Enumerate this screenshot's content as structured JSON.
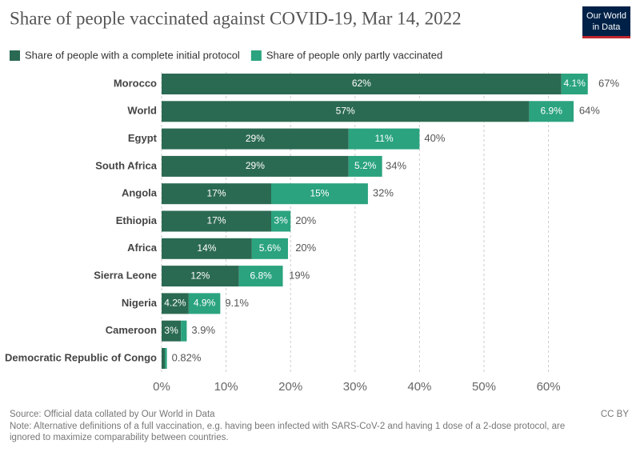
{
  "chart_data": {
    "type": "stacked-barh",
    "title": "Share of people vaccinated against COVID-19, Mar 14, 2022",
    "logo": [
      "Our World",
      "in Data"
    ],
    "categories": [
      "Morocco",
      "World",
      "Egypt",
      "South Africa",
      "Angola",
      "Ethiopia",
      "Africa",
      "Sierra Leone",
      "Nigeria",
      "Cameroon",
      "Democratic Republic of Congo"
    ],
    "series": [
      {
        "name": "Share of people with a complete initial protocol",
        "color": "#2b6a52",
        "values": [
          62,
          57,
          29,
          29,
          17,
          17,
          14,
          12,
          4.2,
          3,
          0.5
        ],
        "value_labels": [
          "62%",
          "57%",
          "29%",
          "29%",
          "17%",
          "17%",
          "14%",
          "12%",
          "4.2%",
          "3%",
          null
        ]
      },
      {
        "name": "Share of people only partly vaccinated",
        "color": "#2aa37e",
        "values": [
          4.1,
          6.9,
          11,
          5.2,
          15,
          3,
          5.6,
          6.8,
          4.9,
          0.9,
          0.32
        ],
        "value_labels": [
          "4.1%",
          "6.9%",
          "11%",
          "5.2%",
          "15%",
          "3%",
          "5.6%",
          "6.8%",
          "4.9%",
          null,
          null
        ]
      }
    ],
    "totals": [
      67,
      64,
      40,
      34,
      32,
      20,
      20,
      19,
      9.1,
      3.9,
      0.82
    ],
    "total_labels": [
      "67%",
      "64%",
      "40%",
      "34%",
      "32%",
      "20%",
      "20%",
      "19%",
      "9.1%",
      "3.9%",
      "0.82%"
    ],
    "xlim": [
      0,
      67
    ],
    "xticks": [
      {
        "value": 0,
        "label": "0%"
      },
      {
        "value": 10,
        "label": "10%"
      },
      {
        "value": 20,
        "label": "20%"
      },
      {
        "value": 30,
        "label": "30%"
      },
      {
        "value": 40,
        "label": "40%"
      },
      {
        "value": 50,
        "label": "50%"
      },
      {
        "value": 60,
        "label": "60%"
      }
    ],
    "grid": true,
    "source": "Source: Official data collated by Our World in Data",
    "note": [
      "Note: Alternative definitions of a full vaccination, e.g. having been infected with SARS-CoV-2 and having 1 dose of a 2-dose protocol, are",
      "ignored to maximize comparability between countries."
    ],
    "license": "CC BY"
  }
}
